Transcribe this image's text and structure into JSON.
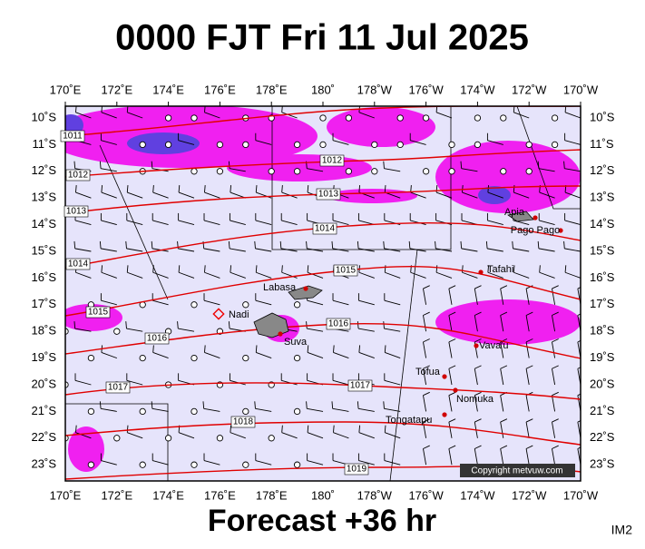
{
  "header": {
    "title": "0000 FJT Fri 11 Jul 2025"
  },
  "footer": {
    "forecast": "Forecast +36 hr",
    "code": "IM2",
    "copyright": "Copyright metvuw.com"
  },
  "map": {
    "longitudes": [
      "170˚E",
      "172˚E",
      "174˚E",
      "176˚E",
      "178˚E",
      "180˚",
      "178˚W",
      "176˚W",
      "174˚W",
      "172˚W",
      "170˚W"
    ],
    "latitudes": [
      "10˚S",
      "11˚S",
      "12˚S",
      "13˚S",
      "14˚S",
      "15˚S",
      "16˚S",
      "17˚S",
      "18˚S",
      "19˚S",
      "20˚S",
      "21˚S",
      "22˚S",
      "23˚S"
    ],
    "isobar_labels": [
      1011,
      1012,
      1012,
      1013,
      1013,
      1014,
      1014,
      1015,
      1015,
      1016,
      1016,
      1017,
      1017,
      1018,
      1019
    ],
    "places": [
      "Apia",
      "Pago Pago",
      "Tafahi",
      "Labasa",
      "Nadi",
      "Suva",
      "Vava'u",
      "Tofua",
      "Nomuka",
      "Tongatapu"
    ]
  }
}
